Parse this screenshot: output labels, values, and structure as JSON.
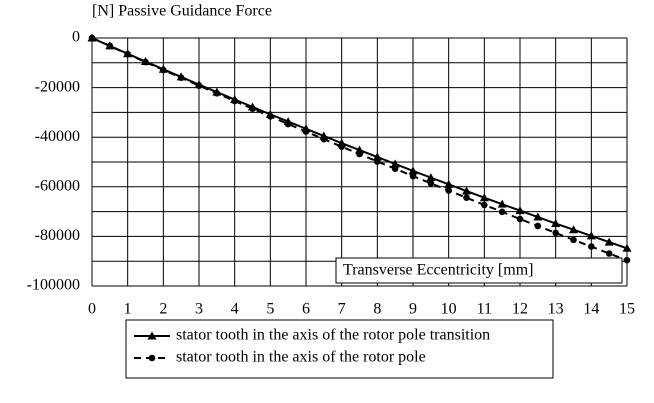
{
  "chart_data": {
    "type": "line",
    "title": "[N] Passive Guidance Force",
    "xlabel": "Transverse Eccentricity [mm]",
    "x": [
      0,
      0.5,
      1,
      1.5,
      2,
      2.5,
      3,
      3.5,
      4,
      4.5,
      5,
      5.5,
      6,
      6.5,
      7,
      7.5,
      8,
      8.5,
      9,
      9.5,
      10,
      10.5,
      11,
      11.5,
      12,
      12.5,
      13,
      13.5,
      14,
      14.5,
      15
    ],
    "series": [
      {
        "name": "stator tooth in the axis of the rotor pole transition",
        "color": "#000000",
        "marker": "triangle",
        "dashed": false,
        "values": [
          0,
          -3200,
          -6350,
          -9500,
          -12600,
          -15700,
          -18800,
          -21800,
          -24800,
          -27800,
          -30800,
          -33700,
          -36600,
          -39500,
          -42400,
          -45200,
          -48000,
          -50800,
          -53600,
          -56300,
          -59000,
          -61700,
          -64400,
          -67000,
          -69600,
          -72200,
          -74800,
          -77300,
          -79800,
          -82300,
          -84800
        ]
      },
      {
        "name": "stator tooth in the axis of the rotor pole",
        "color": "#000000",
        "marker": "circle",
        "dashed": true,
        "values": [
          0,
          -3200,
          -6500,
          -9700,
          -12900,
          -16000,
          -19200,
          -22300,
          -25400,
          -28500,
          -31600,
          -34700,
          -37700,
          -40800,
          -43800,
          -46800,
          -49800,
          -52700,
          -55700,
          -58600,
          -61500,
          -64400,
          -67300,
          -70100,
          -73000,
          -75800,
          -78600,
          -81400,
          -84100,
          -86900,
          -89600
        ]
      }
    ],
    "xlim": [
      0,
      15
    ],
    "xticks": [
      0,
      1,
      2,
      3,
      4,
      5,
      6,
      7,
      8,
      9,
      10,
      11,
      12,
      13,
      14,
      15
    ],
    "ylim": [
      -100000,
      0
    ],
    "yticks": [
      0,
      -20000,
      -40000,
      -60000,
      -80000,
      -100000
    ],
    "ygrid": [
      0,
      -10000,
      -20000,
      -30000,
      -40000,
      -50000,
      -60000,
      -70000,
      -80000,
      -90000,
      -100000
    ],
    "grid": true
  }
}
